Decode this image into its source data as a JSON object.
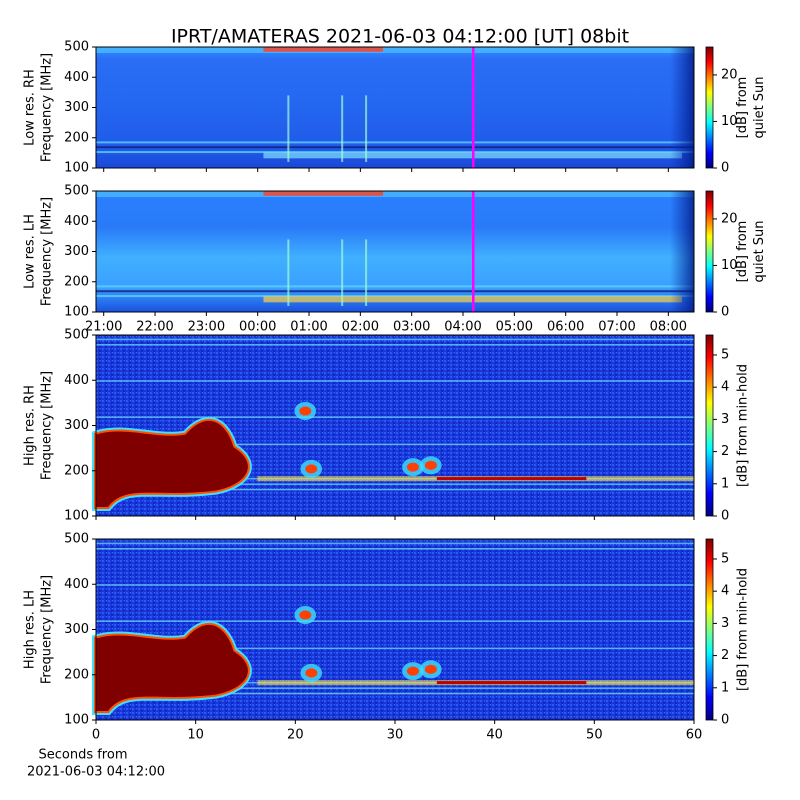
{
  "title": "IPRT/AMATERAS 2021-06-03 04:12:00 [UT]   08bit",
  "chart_data": [
    {
      "type": "heatmap",
      "ylabel": [
        "Low res. RH",
        "Frequency [MHz]"
      ],
      "xlim": [
        20.85,
        32.5
      ],
      "ylim": [
        100,
        500
      ],
      "yticks": [
        100,
        200,
        300,
        400,
        500
      ],
      "marker_x": 28.2,
      "marker_color": "#ff00ff",
      "colorbar": {
        "label": [
          "[dB] from",
          "quiet Sun"
        ],
        "lim": [
          0,
          26
        ],
        "ticks": [
          0,
          10,
          20
        ]
      }
    },
    {
      "type": "heatmap",
      "ylabel": [
        "Low res. LH",
        "Frequency [MHz]"
      ],
      "xlim": [
        20.85,
        32.5
      ],
      "ylim": [
        100,
        500
      ],
      "yticks": [
        100,
        200,
        300,
        400,
        500
      ],
      "xticks": [
        {
          "value": 21,
          "label": "21:00"
        },
        {
          "value": 22,
          "label": "22:00"
        },
        {
          "value": 23,
          "label": "23:00"
        },
        {
          "value": 24,
          "label": "00:00"
        },
        {
          "value": 25,
          "label": "01:00"
        },
        {
          "value": 26,
          "label": "02:00"
        },
        {
          "value": 27,
          "label": "03:00"
        },
        {
          "value": 28,
          "label": "04:00"
        },
        {
          "value": 29,
          "label": "05:00"
        },
        {
          "value": 30,
          "label": "06:00"
        },
        {
          "value": 31,
          "label": "07:00"
        },
        {
          "value": 32,
          "label": "08:00"
        }
      ],
      "marker_x": 28.2,
      "marker_color": "#ff00ff",
      "colorbar": {
        "label": [
          "[dB] from",
          "quiet Sun"
        ],
        "lim": [
          0,
          26
        ],
        "ticks": [
          0,
          10,
          20
        ]
      }
    },
    {
      "type": "heatmap",
      "ylabel": [
        "High res. RH",
        "Frequency [MHz]"
      ],
      "xlim": [
        0,
        60
      ],
      "ylim": [
        100,
        500
      ],
      "yticks": [
        100,
        200,
        300,
        400,
        500
      ],
      "colorbar": {
        "label": [
          "[dB] from min-hold"
        ],
        "lim": [
          0,
          5.62
        ],
        "ticks": [
          0,
          1,
          2,
          3,
          4,
          5
        ]
      }
    },
    {
      "type": "heatmap",
      "ylabel": [
        "High res. LH",
        "Frequency [MHz]"
      ],
      "xlim": [
        0,
        60
      ],
      "ylim": [
        100,
        500
      ],
      "yticks": [
        100,
        200,
        300,
        400,
        500
      ],
      "xticks": [
        0,
        10,
        20,
        30,
        40,
        50,
        60
      ],
      "xlabel": [
        "Seconds from",
        "2021-06-03 04:12:00"
      ],
      "colorbar": {
        "label": [
          "[dB] from min-hold"
        ],
        "lim": [
          0,
          5.62
        ],
        "ticks": [
          0,
          1,
          2,
          3,
          4,
          5
        ]
      }
    }
  ]
}
